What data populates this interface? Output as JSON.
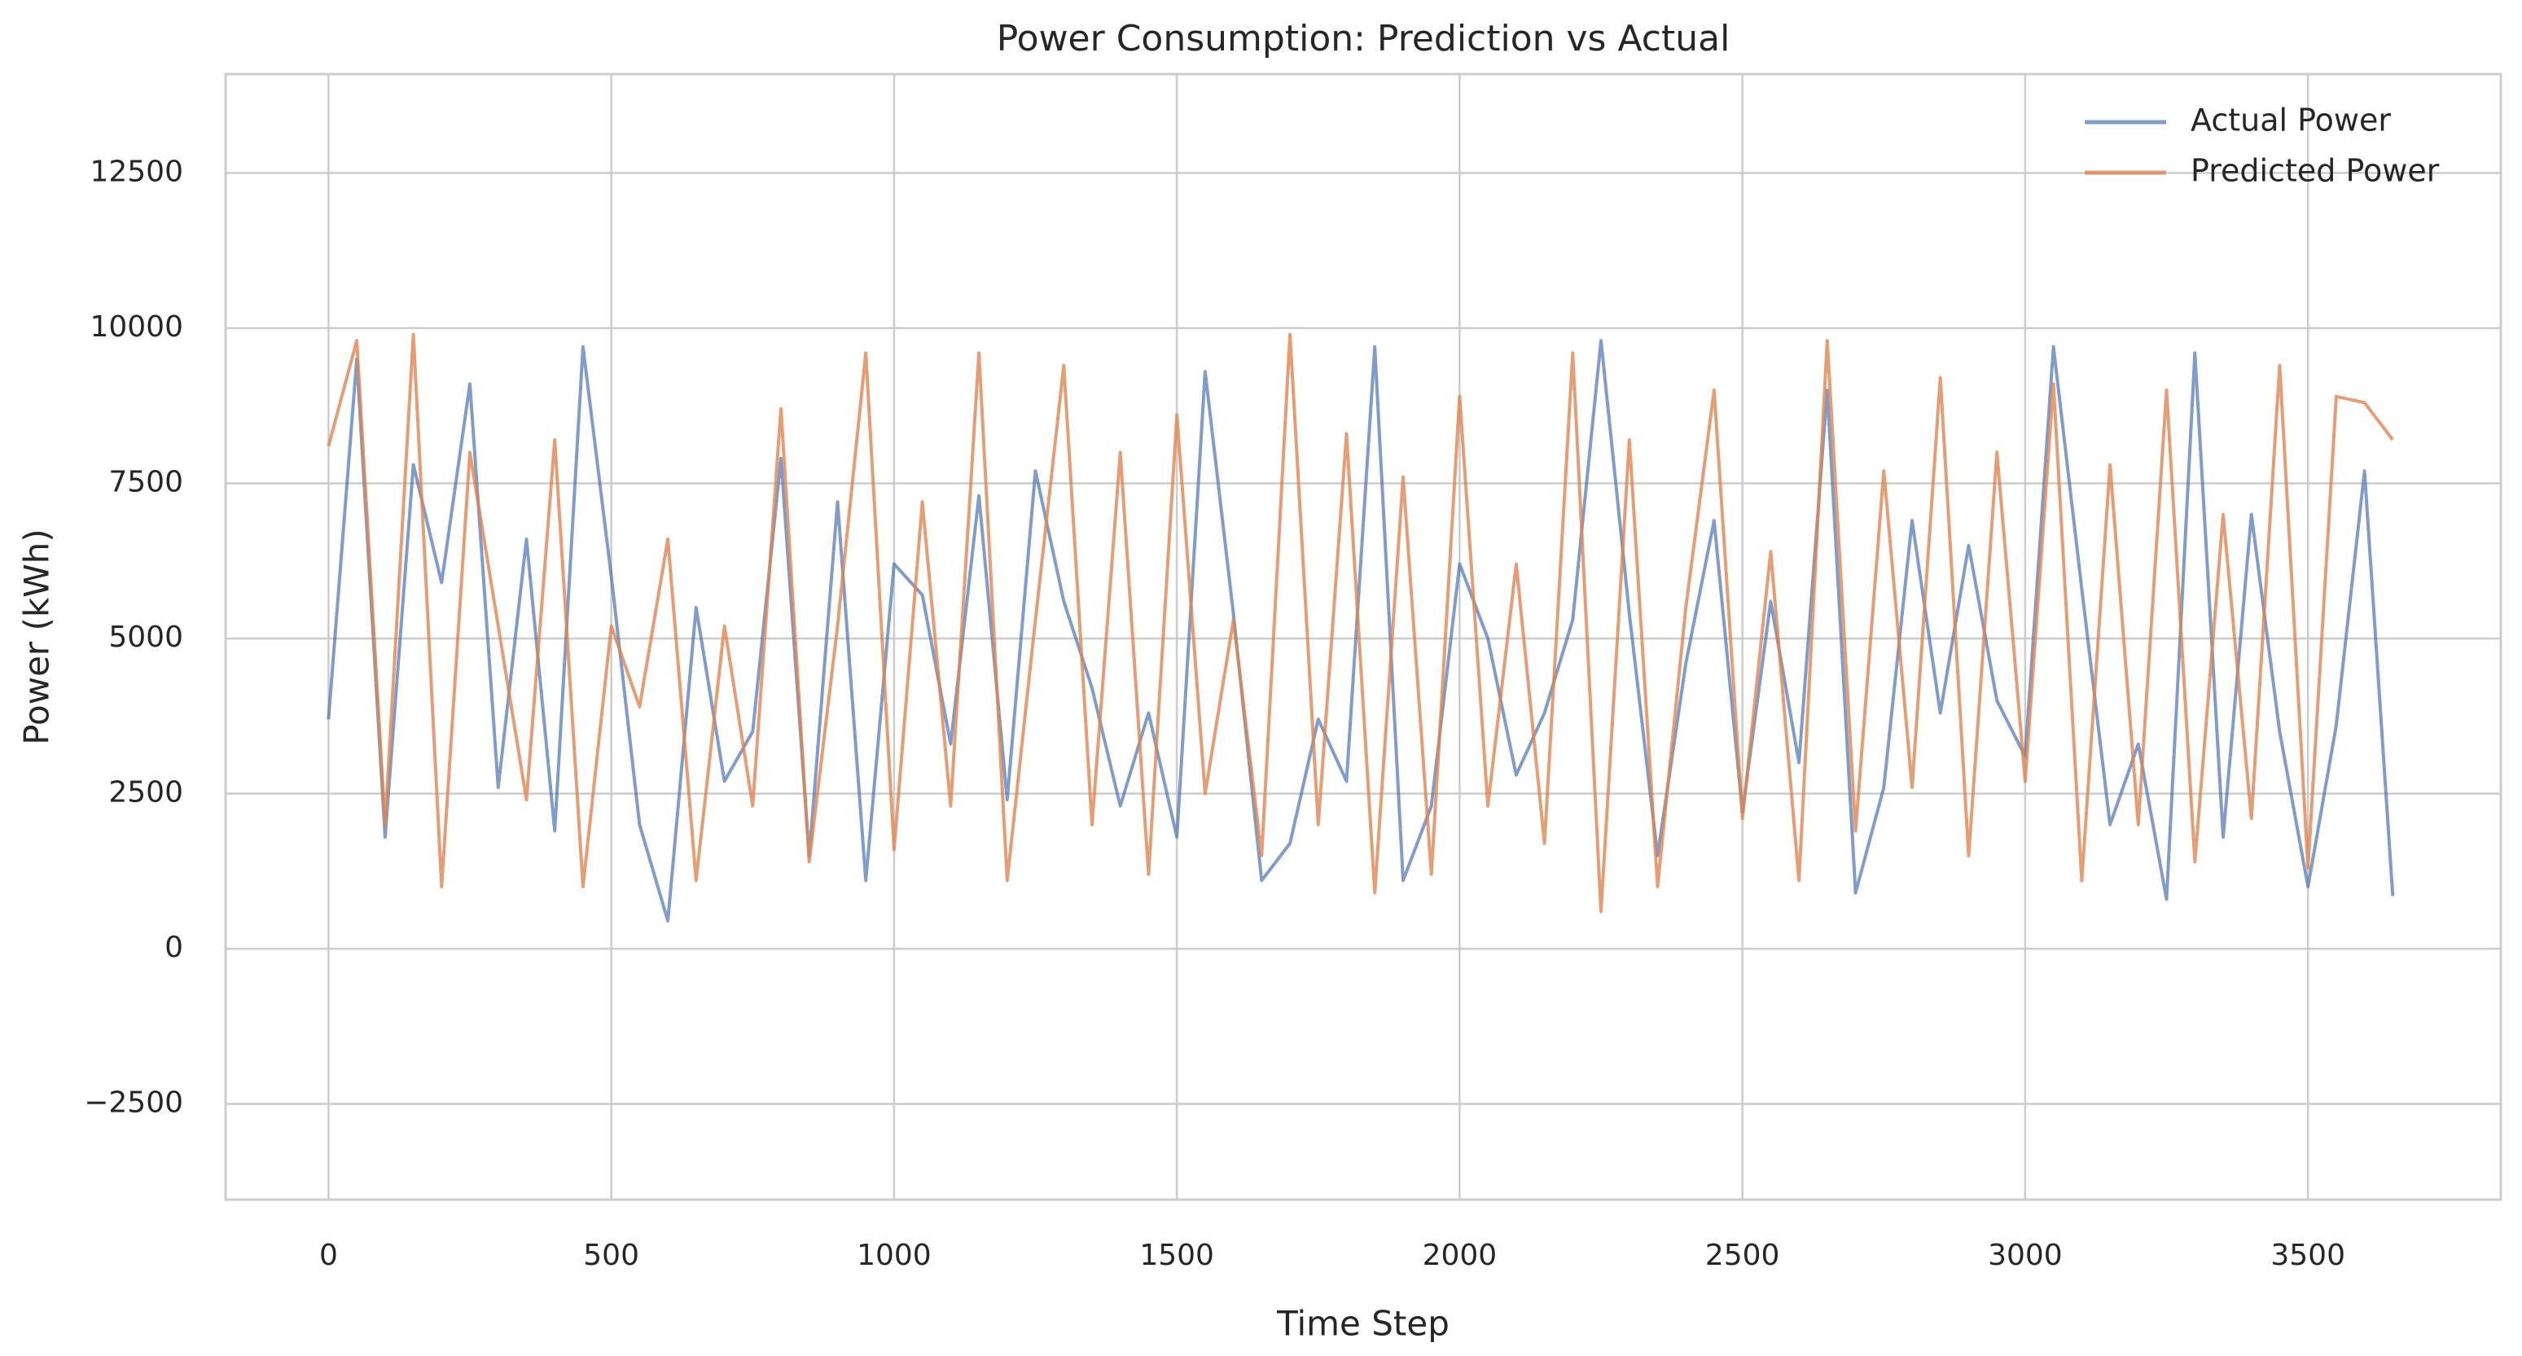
{
  "chart_data": {
    "type": "line",
    "title": "Power Consumption: Prediction vs Actual",
    "x_label": "Time Step",
    "y_label": "Power (kWh)",
    "x": [
      0,
      50,
      100,
      150,
      200,
      250,
      300,
      350,
      400,
      450,
      500,
      550,
      600,
      650,
      700,
      750,
      800,
      850,
      900,
      950,
      1000,
      1050,
      1100,
      1150,
      1200,
      1250,
      1300,
      1350,
      1400,
      1450,
      1500,
      1550,
      1600,
      1650,
      1700,
      1750,
      1800,
      1850,
      1900,
      1950,
      2000,
      2050,
      2100,
      2150,
      2200,
      2250,
      2300,
      2350,
      2400,
      2450,
      2500,
      2550,
      2600,
      2650,
      2700,
      2750,
      2800,
      2850,
      2900,
      2950,
      3000,
      3050,
      3100,
      3150,
      3200,
      3250,
      3300,
      3350,
      3400,
      3450,
      3500,
      3550,
      3600,
      3650
    ],
    "series": [
      {
        "name": "Actual Power",
        "color": "#4c72b0",
        "values": [
          3700,
          9500,
          1800,
          7800,
          5900,
          9100,
          2600,
          6600,
          1900,
          9700,
          6000,
          2000,
          450,
          5500,
          2700,
          3500,
          7900,
          1500,
          7200,
          1100,
          6200,
          5700,
          3300,
          7300,
          2400,
          7700,
          5600,
          4200,
          2300,
          3800,
          1800,
          9300,
          5400,
          1100,
          1700,
          3700,
          2700,
          9700,
          1100,
          2300,
          6200,
          5000,
          2800,
          3800,
          5300,
          9800,
          5400,
          1500,
          4600,
          6900,
          2200,
          5600,
          3000,
          9000,
          900,
          2600,
          6900,
          3800,
          6500,
          4000,
          3100,
          9700,
          5800,
          2000,
          3300,
          800,
          9600,
          1800,
          7000,
          3500,
          1000,
          3600,
          7700,
          850
        ]
      },
      {
        "name": "Predicted Power",
        "color": "#dd8452",
        "values": [
          8100,
          9800,
          2000,
          9900,
          1000,
          8000,
          5200,
          2400,
          8200,
          1000,
          5200,
          3900,
          6600,
          1100,
          5200,
          2300,
          8700,
          1400,
          5200,
          9600,
          1600,
          7200,
          2300,
          9600,
          1100,
          5300,
          9400,
          2000,
          8000,
          1200,
          8600,
          2500,
          5300,
          1500,
          9900,
          2000,
          8300,
          900,
          7600,
          1200,
          8900,
          2300,
          6200,
          1700,
          9600,
          600,
          8200,
          1000,
          5500,
          9000,
          2100,
          6400,
          1100,
          9800,
          1900,
          7700,
          2600,
          9200,
          1500,
          8000,
          2700,
          9100,
          1100,
          7800,
          2000,
          9000,
          1400,
          7000,
          2100,
          9400,
          1300,
          8900,
          8800,
          8200
        ]
      }
    ],
    "xlim": [
      -182,
      3841
    ],
    "ylim": [
      -4041,
      14093
    ],
    "xticks": [
      0,
      500,
      1000,
      1500,
      2000,
      2500,
      3000,
      3500
    ],
    "yticks": [
      {
        "value": -2500,
        "label": "−2500"
      },
      0,
      2500,
      5000,
      7500,
      10000,
      12500
    ],
    "grid": true,
    "legend": "upper right"
  }
}
